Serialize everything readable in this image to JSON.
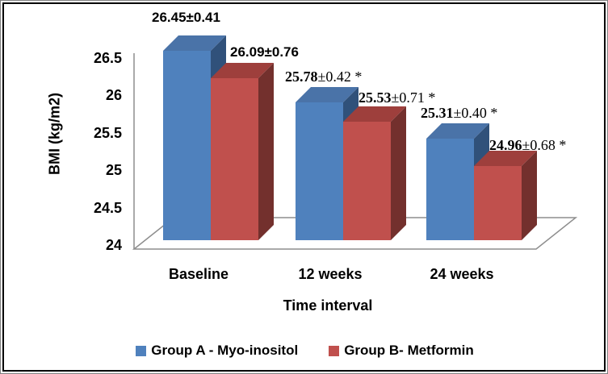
{
  "chart_data": {
    "type": "bar",
    "variant": "3d-clustered-column",
    "title": "",
    "xlabel": "Time interval",
    "ylabel": "BMI (kg/m2)",
    "categories": [
      "Baseline",
      "12 weeks",
      "24 weeks"
    ],
    "series": [
      {
        "name": "Group A - Myo-inositol",
        "color": "#4F81BD",
        "values": [
          26.45,
          25.78,
          25.31
        ]
      },
      {
        "name": "Group B- Metformin",
        "color": "#C0504D",
        "values": [
          26.09,
          25.53,
          24.96
        ]
      }
    ],
    "ylim": [
      24,
      26.5
    ],
    "yticks": [
      "26.5",
      "26",
      "25.5",
      "25",
      "24.5",
      "24"
    ],
    "ytick_values": [
      26.5,
      26,
      25.5,
      25,
      24.5,
      24
    ],
    "grid": "off",
    "legend_position": "bottom",
    "value_labels": [
      {
        "num": "26.45",
        "rest": "±0.41",
        "star": "",
        "font": "sans",
        "series": 0,
        "category": 0
      },
      {
        "num": "26.09",
        "rest": "±0.76",
        "star": "",
        "font": "sans",
        "series": 1,
        "category": 0
      },
      {
        "num": "25.78",
        "rest": "±0.42",
        "star": " *",
        "font": "serif",
        "series": 0,
        "category": 1
      },
      {
        "num": "25.53",
        "rest": "±0.71",
        "star": " *",
        "font": "serif",
        "series": 1,
        "category": 1
      },
      {
        "num": "25.31",
        "rest": "±0.40",
        "star": " *",
        "font": "serif",
        "series": 0,
        "category": 2
      },
      {
        "num": "24.96",
        "rest": "±0.68",
        "star": " *",
        "font": "serif",
        "series": 1,
        "category": 2
      }
    ]
  },
  "axes": {
    "y_title": "BMI (kg/m2)",
    "x_title": "Time interval"
  },
  "legend": {
    "items": [
      {
        "label": "Group A - Myo-inositol",
        "color": "#4F81BD"
      },
      {
        "label": "Group B- Metformin",
        "color": "#C0504D"
      }
    ]
  },
  "colors": {
    "blue_front": "#4F81BD",
    "blue_top": "#4A73A8",
    "blue_side": "#30517A",
    "red_front": "#C0504D",
    "red_top": "#9E3F3C",
    "red_side": "#73302D",
    "axis_line": "#8E8E8E",
    "text": "#000000",
    "background": "#FFFFFF"
  }
}
